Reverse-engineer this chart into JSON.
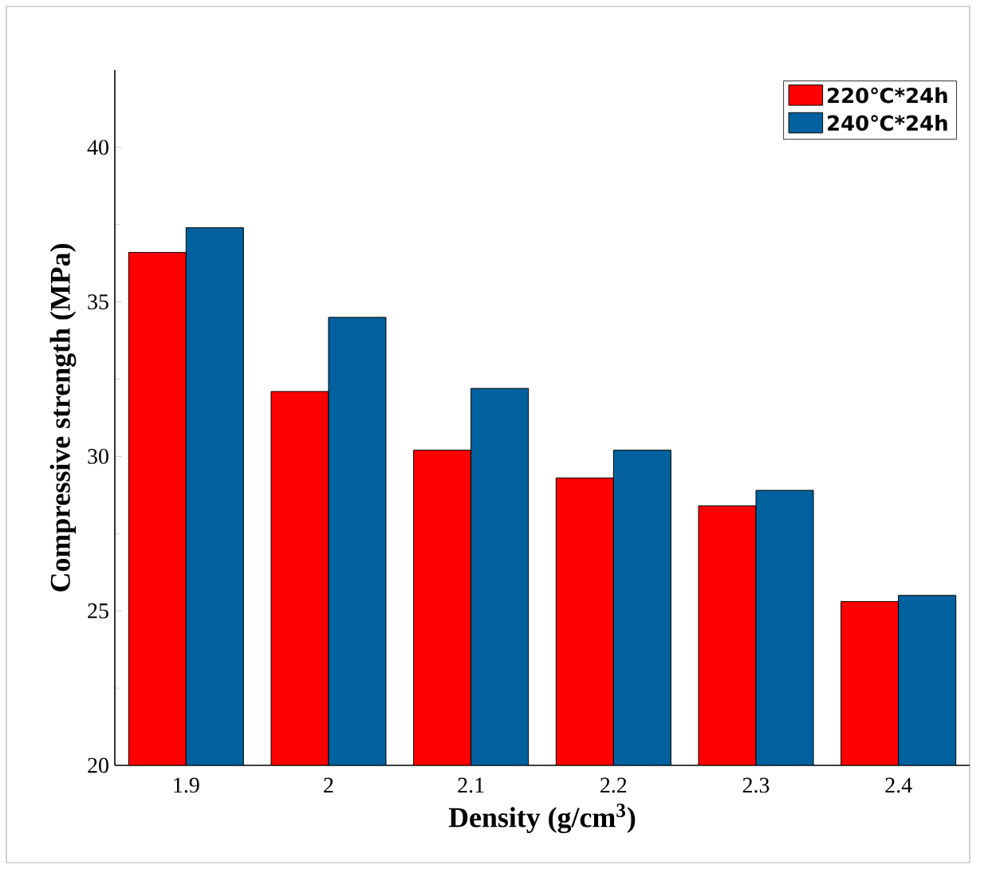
{
  "chart_data": {
    "type": "bar",
    "xlabel": "Density (g/cm$^{3}$)",
    "ylabel": "Compressive strength (MPa)",
    "categories": [
      "1.9",
      "2",
      "2.1",
      "2.2",
      "2.3",
      "2.4"
    ],
    "series": [
      {
        "name": "220℃*24h",
        "color": "#ff0000",
        "values": [
          36.6,
          32.1,
          30.2,
          29.3,
          28.4,
          25.3
        ]
      },
      {
        "name": "240℃*24h",
        "color": "#00619e",
        "values": [
          37.4,
          34.5,
          32.2,
          30.2,
          28.9,
          25.5
        ]
      }
    ],
    "ylim": [
      20,
      42.5
    ],
    "yticks": [
      20,
      25,
      30,
      35,
      40
    ],
    "grid": false,
    "legend": "top right"
  }
}
